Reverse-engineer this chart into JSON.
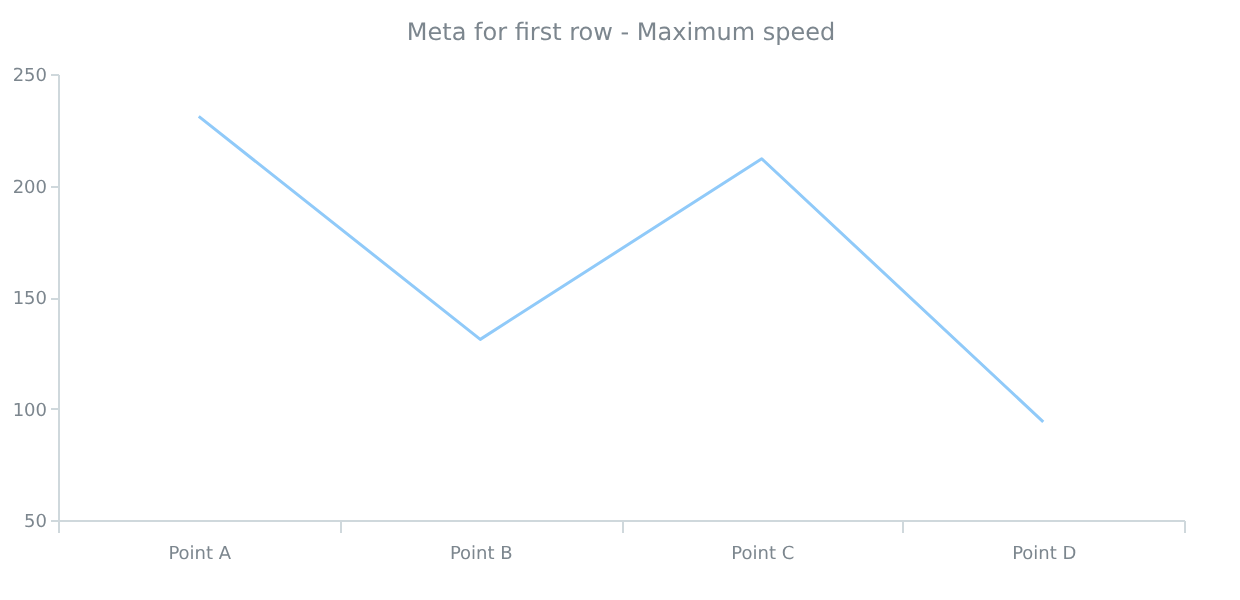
{
  "chart_data": {
    "type": "line",
    "title": "Meta for first row - Maximum speed",
    "categories": [
      "Point A",
      "Point B",
      "Point C",
      "Point D"
    ],
    "series": [
      {
        "color": "#90caf9",
        "values": [
          231,
          131,
          212,
          94
        ]
      }
    ],
    "ylim": [
      50,
      250
    ],
    "yticks": [
      50,
      100,
      150,
      200,
      250
    ],
    "grid": false
  }
}
